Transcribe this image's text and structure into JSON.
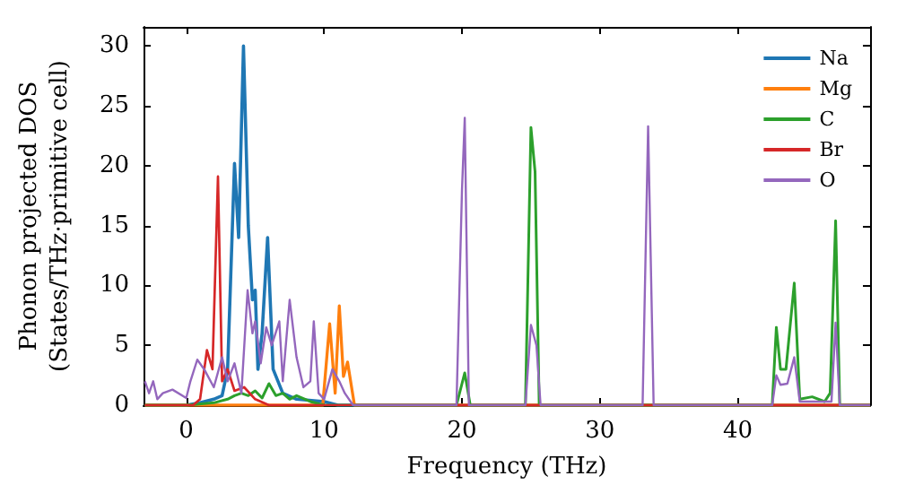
{
  "chart_data": {
    "type": "line",
    "xlabel": "Frequency (THz)",
    "ylabel": "Phonon projected DOS\n(States/THz·primitive cell)",
    "xlim": [
      -3.1,
      49.6
    ],
    "xticks": [
      0,
      10,
      20,
      30,
      40
    ],
    "ylim": [
      0,
      31.6
    ],
    "yticks": [
      0,
      5,
      10,
      15,
      20,
      25,
      30
    ],
    "grid": false,
    "legend": "top right",
    "marker": "none",
    "line_style": "solid",
    "series": [
      {
        "name": "Na",
        "color": "#1f77b4",
        "x": [
          -3,
          0,
          1,
          2,
          2.6,
          3.0,
          3.5,
          3.8,
          4.15,
          4.5,
          4.8,
          5.0,
          5.2,
          5.5,
          5.9,
          6.3,
          7,
          8,
          10,
          11,
          20,
          49.6
        ],
        "values": [
          0,
          0,
          0.2,
          0.5,
          0.8,
          3,
          20.2,
          14,
          30,
          15,
          8.8,
          9.6,
          3,
          6,
          14,
          3,
          1,
          0.5,
          0.3,
          0,
          0,
          0
        ]
      },
      {
        "name": "Mg",
        "color": "#ff7f0e",
        "x": [
          -3,
          9.9,
          10.4,
          10.8,
          11.1,
          11.4,
          11.7,
          12.2,
          49.6
        ],
        "values": [
          0,
          0,
          6.8,
          1,
          8.3,
          2.4,
          3.6,
          0,
          0
        ]
      },
      {
        "name": "C",
        "color": "#2ca02c",
        "x": [
          -3,
          0,
          2,
          3,
          3.5,
          4,
          4.5,
          5,
          5.5,
          6,
          6.5,
          7,
          7.5,
          8,
          9,
          10,
          19.6,
          20.2,
          20.6,
          24.6,
          25.0,
          25.3,
          25.6,
          42.5,
          42.8,
          43.1,
          43.5,
          44.1,
          44.5,
          45.4,
          46.3,
          46.7,
          47.1,
          47.4,
          49.6
        ],
        "values": [
          0,
          0,
          0.2,
          0.5,
          0.8,
          1,
          0.8,
          1.2,
          0.6,
          1.8,
          0.8,
          1,
          0.5,
          0.8,
          0.3,
          0,
          0,
          2.7,
          0,
          0,
          23.2,
          19.5,
          0,
          0,
          6.5,
          3,
          3,
          10.2,
          0.5,
          0.7,
          0.3,
          1,
          15.4,
          0,
          0
        ]
      },
      {
        "name": "Br",
        "color": "#d62728",
        "x": [
          -3,
          0.5,
          1.0,
          1.5,
          1.9,
          2.3,
          2.6,
          3.0,
          3.5,
          4.2,
          5,
          6,
          49.6
        ],
        "values": [
          0,
          0,
          0.5,
          4.6,
          3,
          19.1,
          2,
          3,
          1.2,
          1.5,
          0.5,
          0,
          0
        ]
      },
      {
        "name": "O",
        "color": "#9467bd",
        "x": [
          -3,
          -2.7,
          -2.4,
          -2.1,
          -1.7,
          -1,
          0,
          0.3,
          0.8,
          1.3,
          2.0,
          2.6,
          3.0,
          3.5,
          4.0,
          4.45,
          4.8,
          5.0,
          5.4,
          5.8,
          6.2,
          6.75,
          7.0,
          7.5,
          8.0,
          8.5,
          9.0,
          9.25,
          9.6,
          10.0,
          10.6,
          11.1,
          11.5,
          12.1,
          19.6,
          20.0,
          20.2,
          20.5,
          24.6,
          25.0,
          25.4,
          25.7,
          33.1,
          33.5,
          33.9,
          42.5,
          42.8,
          43.1,
          43.6,
          44.1,
          44.5,
          46.8,
          47.1,
          47.4,
          49.6
        ],
        "values": [
          2,
          1,
          2,
          0.5,
          1,
          1.3,
          0.6,
          2,
          3.8,
          3,
          1.5,
          4,
          2,
          3.5,
          1,
          9.6,
          6,
          7,
          3.5,
          6.5,
          5,
          7,
          2,
          8.8,
          4,
          1.5,
          2,
          7,
          1,
          0.5,
          3,
          2,
          1,
          0,
          0,
          18,
          24,
          0,
          0,
          6.7,
          5,
          0,
          0,
          23.3,
          0,
          0,
          2.5,
          1.7,
          1.8,
          4,
          0.3,
          0.3,
          6.9,
          0,
          0
        ]
      }
    ]
  }
}
